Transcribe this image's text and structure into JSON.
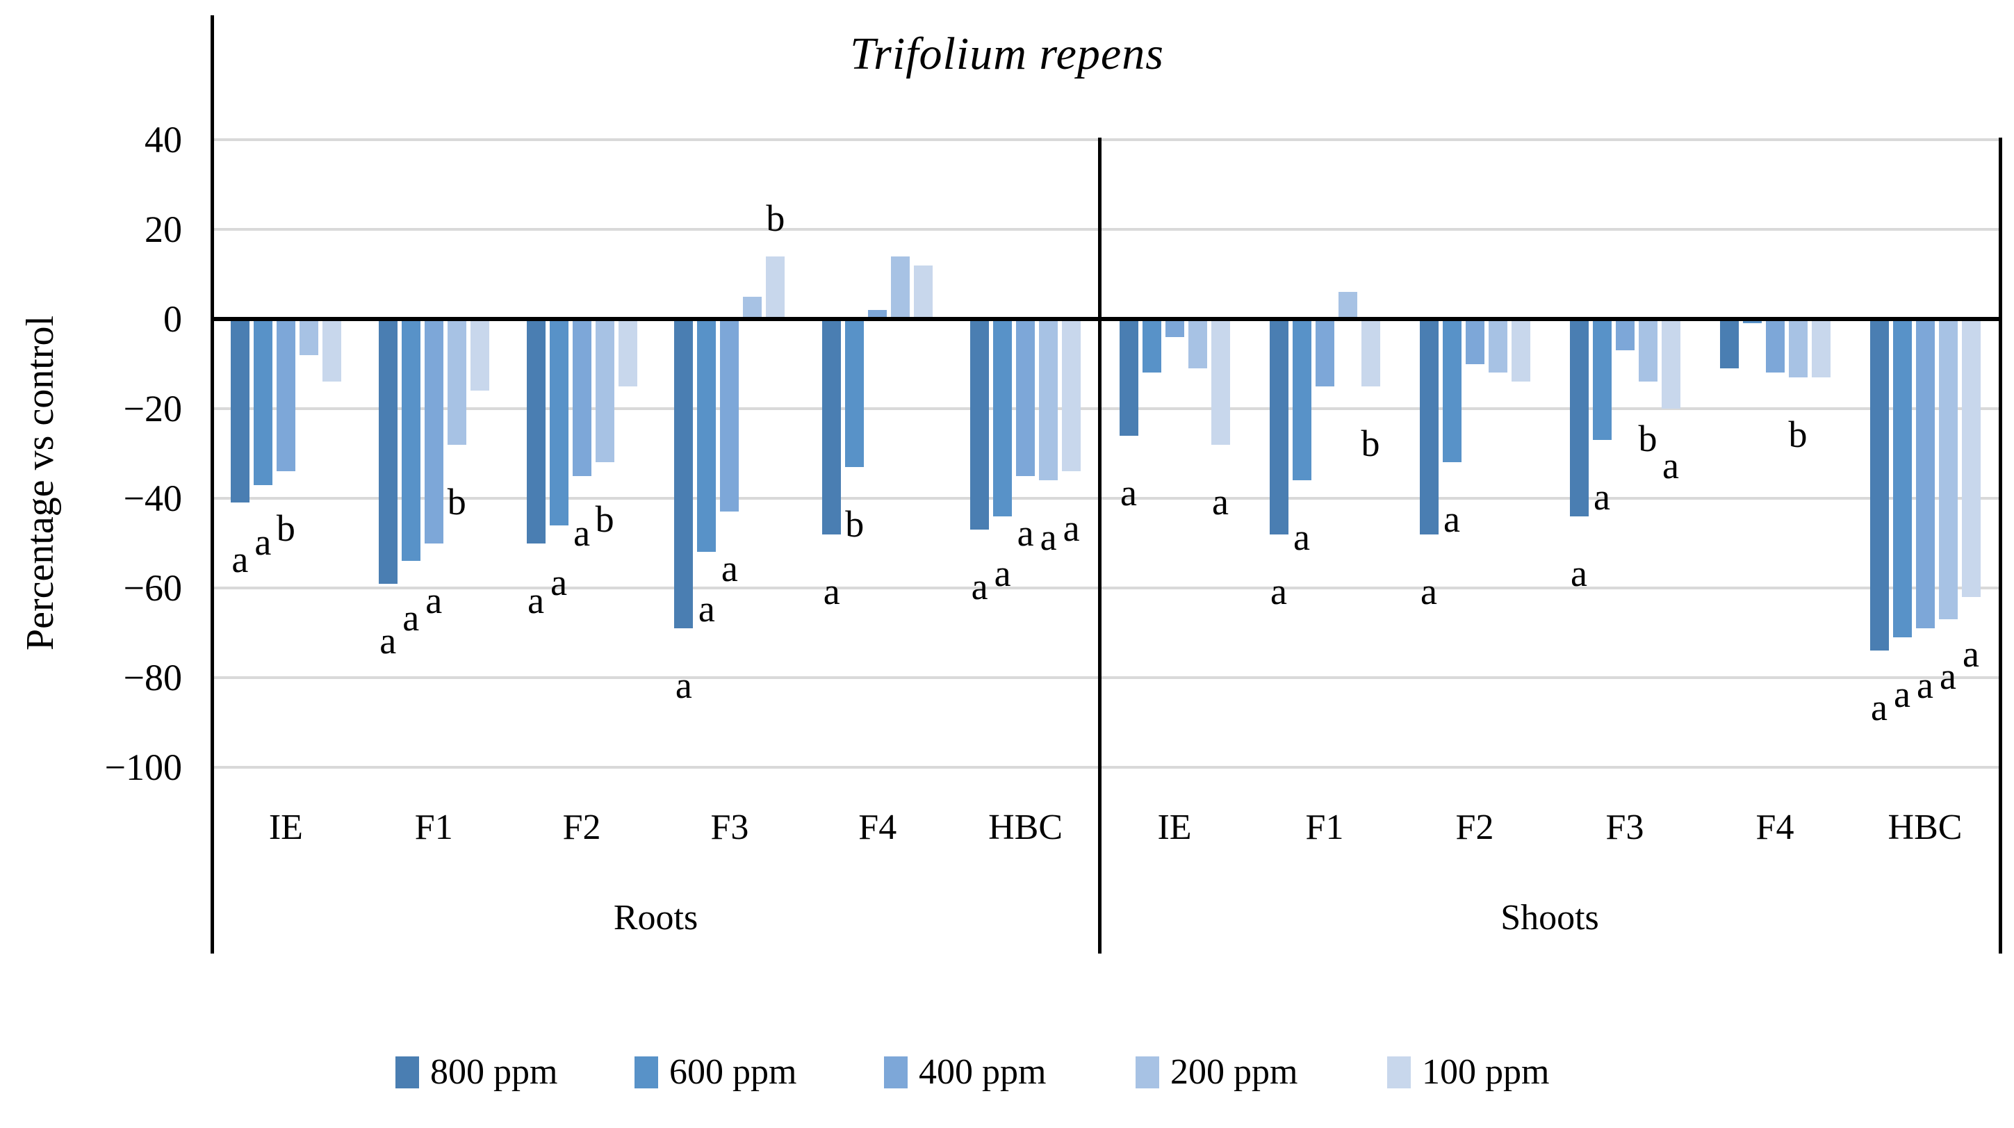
{
  "title": "Trifolium repens",
  "y_axis": {
    "label": "Percentage vs control",
    "tick_values": [
      40,
      20,
      0,
      -20,
      -40,
      -60,
      -80,
      -100
    ],
    "min": -100,
    "max": 40
  },
  "legend": [
    "800 ppm",
    "600 ppm",
    "400 ppm",
    "200 ppm",
    "100 ppm"
  ],
  "colors": [
    "#4a7eb2",
    "#5892c8",
    "#7da7d8",
    "#a7c2e4",
    "#c8d7ec"
  ],
  "gridline_color": "#d9d9d9",
  "axis_color": "#000000",
  "chart_data": {
    "type": "bar",
    "title": "Trifolium repens",
    "ylabel": "Percentage vs control",
    "ylim": [
      -100,
      40
    ],
    "grid": true,
    "legend_position": "bottom",
    "series": [
      {
        "name": "800 ppm",
        "color": "#4a7eb2"
      },
      {
        "name": "600 ppm",
        "color": "#5892c8"
      },
      {
        "name": "400 ppm",
        "color": "#7da7d8"
      },
      {
        "name": "200 ppm",
        "color": "#a7c2e4"
      },
      {
        "name": "100 ppm",
        "color": "#c8d7ec"
      }
    ],
    "sections": [
      {
        "name": "Roots",
        "groups": [
          {
            "label": "IE",
            "values": [
              -41,
              -37,
              -34,
              -8,
              -14
            ],
            "letters": [
              {
                "series": 0,
                "text": "a"
              },
              {
                "series": 1,
                "text": "a"
              },
              {
                "series": 2,
                "text": "b"
              }
            ]
          },
          {
            "label": "F1",
            "values": [
              -59,
              -54,
              -50,
              -28,
              -16
            ],
            "letters": [
              {
                "series": 0,
                "text": "a"
              },
              {
                "series": 1,
                "text": "a"
              },
              {
                "series": 2,
                "text": "a"
              },
              {
                "series": 3,
                "text": "b"
              }
            ]
          },
          {
            "label": "F2",
            "values": [
              -50,
              -46,
              -35,
              -32,
              -15
            ],
            "letters": [
              {
                "series": 0,
                "text": "a"
              },
              {
                "series": 1,
                "text": "a"
              },
              {
                "series": 2,
                "text": "a"
              },
              {
                "series": 3,
                "text": "b"
              }
            ]
          },
          {
            "label": "F3",
            "values": [
              -69,
              -52,
              -43,
              5,
              14
            ],
            "letters": [
              {
                "series": 0,
                "text": "a"
              },
              {
                "series": 1,
                "text": "a"
              },
              {
                "series": 2,
                "text": "a"
              },
              {
                "series": 4,
                "text": "b",
                "pos": "above"
              }
            ]
          },
          {
            "label": "F4",
            "values": [
              -48,
              -33,
              2,
              14,
              12
            ],
            "letters": [
              {
                "series": 0,
                "text": "a"
              },
              {
                "series": 1,
                "text": "b"
              }
            ]
          },
          {
            "label": "HBC",
            "values": [
              -47,
              -44,
              -35,
              -36,
              -34
            ],
            "letters": [
              {
                "series": 0,
                "text": "a"
              },
              {
                "series": 1,
                "text": "a"
              },
              {
                "series": 2,
                "text": "a"
              },
              {
                "series": 3,
                "text": "a"
              },
              {
                "series": 4,
                "text": "a"
              }
            ]
          }
        ]
      },
      {
        "name": "Shoots",
        "groups": [
          {
            "label": "IE",
            "values": [
              -26,
              -12,
              -4,
              -11,
              -28
            ],
            "letters": [
              {
                "series": 0,
                "text": "a"
              },
              {
                "series": 4,
                "text": "a"
              }
            ]
          },
          {
            "label": "F1",
            "values": [
              -48,
              -36,
              -15,
              6,
              -15
            ],
            "letters": [
              {
                "series": 0,
                "text": "a"
              },
              {
                "series": 1,
                "text": "a"
              },
              {
                "series": 4,
                "text": "b"
              }
            ]
          },
          {
            "label": "F2",
            "values": [
              -48,
              -32,
              -10,
              -12,
              -14
            ],
            "letters": [
              {
                "series": 0,
                "text": "a"
              },
              {
                "series": 1,
                "text": "a"
              }
            ]
          },
          {
            "label": "F3",
            "values": [
              -44,
              -27,
              -7,
              -14,
              -20
            ],
            "letters": [
              {
                "series": 0,
                "text": "a"
              },
              {
                "series": 1,
                "text": "a"
              },
              {
                "series": 3,
                "text": "b"
              },
              {
                "series": 4,
                "text": "a"
              }
            ]
          },
          {
            "label": "F4",
            "values": [
              -11,
              -1,
              -12,
              -13,
              -13
            ],
            "letters": [
              {
                "series": 3,
                "text": "b"
              }
            ]
          },
          {
            "label": "HBC",
            "values": [
              -74,
              -71,
              -69,
              -67,
              -62
            ],
            "letters": [
              {
                "series": 0,
                "text": "a"
              },
              {
                "series": 1,
                "text": "a"
              },
              {
                "series": 2,
                "text": "a"
              },
              {
                "series": 3,
                "text": "a"
              },
              {
                "series": 4,
                "text": "a"
              }
            ]
          }
        ]
      }
    ]
  }
}
